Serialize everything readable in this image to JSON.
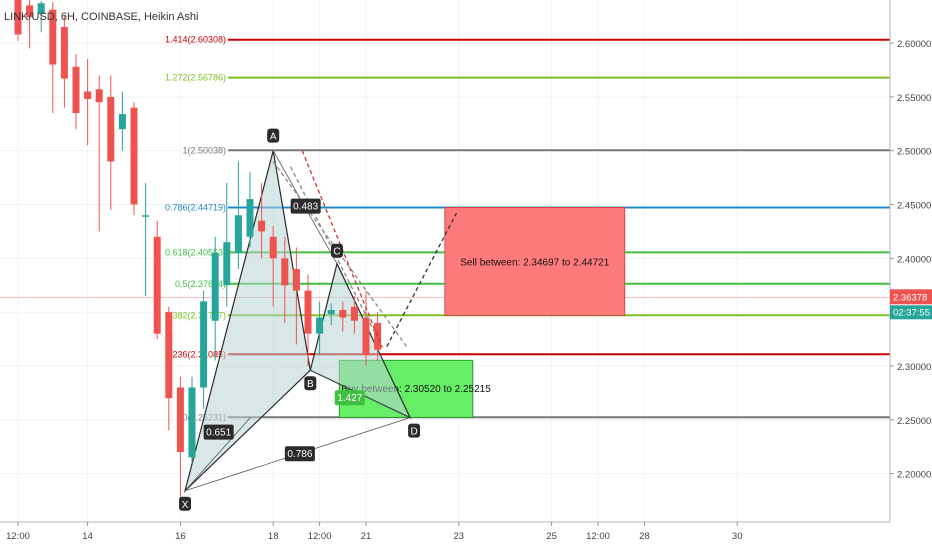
{
  "header": {
    "title": "LINK/USD, 6H, COINBASE, Heikin Ashi"
  },
  "colors": {
    "bull": "#26a69a",
    "bear": "#ef5350",
    "fib_red": "#cc0000",
    "fib_green": "#7cc21e",
    "fib_gray": "#777777",
    "fib_blue": "#1e88c8",
    "fib_green2": "#3fbf3f",
    "sell_zone": "#ff7b7b",
    "buy_zone": "#66ee66",
    "pattern_fill": "#b8d4d4",
    "price_badge": "#ef5350",
    "timer_badge": "#26a69a",
    "label_bg": "#2b2b2b"
  },
  "chart_data": {
    "type": "candlestick",
    "title": "LINK/USD, 6H, COINBASE, Heikin Ashi",
    "ylim": [
      2.155,
      2.64
    ],
    "y_ticks": [
      "2.60000",
      "2.55000",
      "2.50000",
      "2.45000",
      "2.40000",
      "2.35000",
      "2.30000",
      "2.25000",
      "2.20000"
    ],
    "y_tick_values": [
      2.6,
      2.55,
      2.5,
      2.45,
      2.4,
      2.35,
      2.3,
      2.25,
      2.2
    ],
    "x_ticks": [
      {
        "i": 0,
        "label": "12:00"
      },
      {
        "i": 6,
        "label": "14"
      },
      {
        "i": 14,
        "label": "16"
      },
      {
        "i": 22,
        "label": "18"
      },
      {
        "i": 26,
        "label": "12:00"
      },
      {
        "i": 30,
        "label": "21"
      },
      {
        "i": 38,
        "label": "23"
      },
      {
        "i": 46,
        "label": "25"
      },
      {
        "i": 50,
        "label": "12:00"
      },
      {
        "i": 54,
        "label": "28"
      },
      {
        "i": 62,
        "label": "30"
      }
    ],
    "candles": [
      {
        "o": 2.64,
        "h": 2.66,
        "l": 2.602,
        "c": 2.608
      },
      {
        "o": 2.635,
        "h": 2.645,
        "l": 2.595,
        "c": 2.624
      },
      {
        "o": 2.627,
        "h": 2.639,
        "l": 2.61,
        "c": 2.637
      },
      {
        "o": 2.631,
        "h": 2.638,
        "l": 2.535,
        "c": 2.58
      },
      {
        "o": 2.615,
        "h": 2.625,
        "l": 2.54,
        "c": 2.567
      },
      {
        "o": 2.578,
        "h": 2.59,
        "l": 2.52,
        "c": 2.535
      },
      {
        "o": 2.555,
        "h": 2.585,
        "l": 2.505,
        "c": 2.548
      },
      {
        "o": 2.557,
        "h": 2.57,
        "l": 2.425,
        "c": 2.545
      },
      {
        "o": 2.55,
        "h": 2.57,
        "l": 2.445,
        "c": 2.49
      },
      {
        "o": 2.52,
        "h": 2.555,
        "l": 2.5,
        "c": 2.534
      },
      {
        "o": 2.54,
        "h": 2.545,
        "l": 2.44,
        "c": 2.45
      },
      {
        "o": 2.44,
        "h": 2.47,
        "l": 2.365,
        "c": 2.44
      },
      {
        "o": 2.42,
        "h": 2.435,
        "l": 2.325,
        "c": 2.33
      },
      {
        "o": 2.35,
        "h": 2.355,
        "l": 2.24,
        "c": 2.27
      },
      {
        "o": 2.28,
        "h": 2.29,
        "l": 2.17,
        "c": 2.22
      },
      {
        "o": 2.215,
        "h": 2.29,
        "l": 2.21,
        "c": 2.28
      },
      {
        "o": 2.28,
        "h": 2.37,
        "l": 2.26,
        "c": 2.36
      },
      {
        "o": 2.342,
        "h": 2.42,
        "l": 2.305,
        "c": 2.405
      },
      {
        "o": 2.375,
        "h": 2.47,
        "l": 2.355,
        "c": 2.415
      },
      {
        "o": 2.405,
        "h": 2.49,
        "l": 2.39,
        "c": 2.44
      },
      {
        "o": 2.42,
        "h": 2.48,
        "l": 2.41,
        "c": 2.455
      },
      {
        "o": 2.435,
        "h": 2.47,
        "l": 2.4,
        "c": 2.425
      },
      {
        "o": 2.42,
        "h": 2.43,
        "l": 2.355,
        "c": 2.4
      },
      {
        "o": 2.4,
        "h": 2.42,
        "l": 2.34,
        "c": 2.375
      },
      {
        "o": 2.39,
        "h": 2.41,
        "l": 2.32,
        "c": 2.37
      },
      {
        "o": 2.37,
        "h": 2.385,
        "l": 2.3,
        "c": 2.33
      },
      {
        "o": 2.33,
        "h": 2.36,
        "l": 2.31,
        "c": 2.345
      },
      {
        "o": 2.348,
        "h": 2.358,
        "l": 2.338,
        "c": 2.352
      },
      {
        "o": 2.352,
        "h": 2.36,
        "l": 2.332,
        "c": 2.345
      },
      {
        "o": 2.355,
        "h": 2.365,
        "l": 2.33,
        "c": 2.342
      },
      {
        "o": 2.345,
        "h": 2.37,
        "l": 2.3,
        "c": 2.31
      },
      {
        "o": 2.34,
        "h": 2.35,
        "l": 2.305,
        "c": 2.315
      }
    ],
    "fib_levels": [
      {
        "label": "1.414(2.60308)",
        "value": 2.60308,
        "color": "#cc0000"
      },
      {
        "label": "1.272(2.56786)",
        "value": 2.56786,
        "color": "#7cc21e"
      },
      {
        "label": "1(2.50038)",
        "value": 2.50038,
        "color": "#777777"
      },
      {
        "label": "0.786(2.44719)",
        "value": 2.44719,
        "color": "#1e88c8"
      },
      {
        "label": "0.618(2.40553)",
        "value": 2.40553,
        "color": "#3fbf3f"
      },
      {
        "label": "0.5(2.37634)",
        "value": 2.37634,
        "color": "#3fbf3f"
      },
      {
        "label": "0.382(2.34707)",
        "value": 2.34707,
        "color": "#7cc21e"
      },
      {
        "label": "0.236(2.31085)",
        "value": 2.31085,
        "color": "#cc0000"
      },
      {
        "label": "0(2.25231)",
        "value": 2.25231,
        "color": "#777777"
      }
    ],
    "pattern_points": [
      {
        "name": "X",
        "i": 14.4,
        "v": 2.184
      },
      {
        "name": "A",
        "i": 22.0,
        "v": 2.5
      },
      {
        "name": "B",
        "i": 25.2,
        "v": 2.296
      },
      {
        "name": "C",
        "i": 27.5,
        "v": 2.395
      },
      {
        "name": "D",
        "i": 33.8,
        "v": 2.252
      }
    ],
    "ratio_labels": [
      {
        "text": "0.483",
        "i": 24.8,
        "v": 2.448
      },
      {
        "text": "0.651",
        "i": 17.3,
        "v": 2.238
      },
      {
        "text": "0.786",
        "i": 24.3,
        "v": 2.218
      },
      {
        "text": "1.427",
        "i": 28.6,
        "v": 2.27
      }
    ],
    "zones": [
      {
        "name": "sell",
        "text": "Sell between: 2.34697 to 2.44721",
        "i_start": 36.8,
        "i_end": 52.3,
        "v_top": 2.44721,
        "v_bottom": 2.34697
      },
      {
        "name": "buy",
        "text": "Buy between: 2.30520 to 2.25215",
        "i_start": 27.7,
        "i_end": 39.2,
        "v_top": 2.3052,
        "v_bottom": 2.25215
      }
    ],
    "current_price": {
      "value": 2.36378,
      "label": "2.36378",
      "timer": "02:37:55"
    }
  }
}
